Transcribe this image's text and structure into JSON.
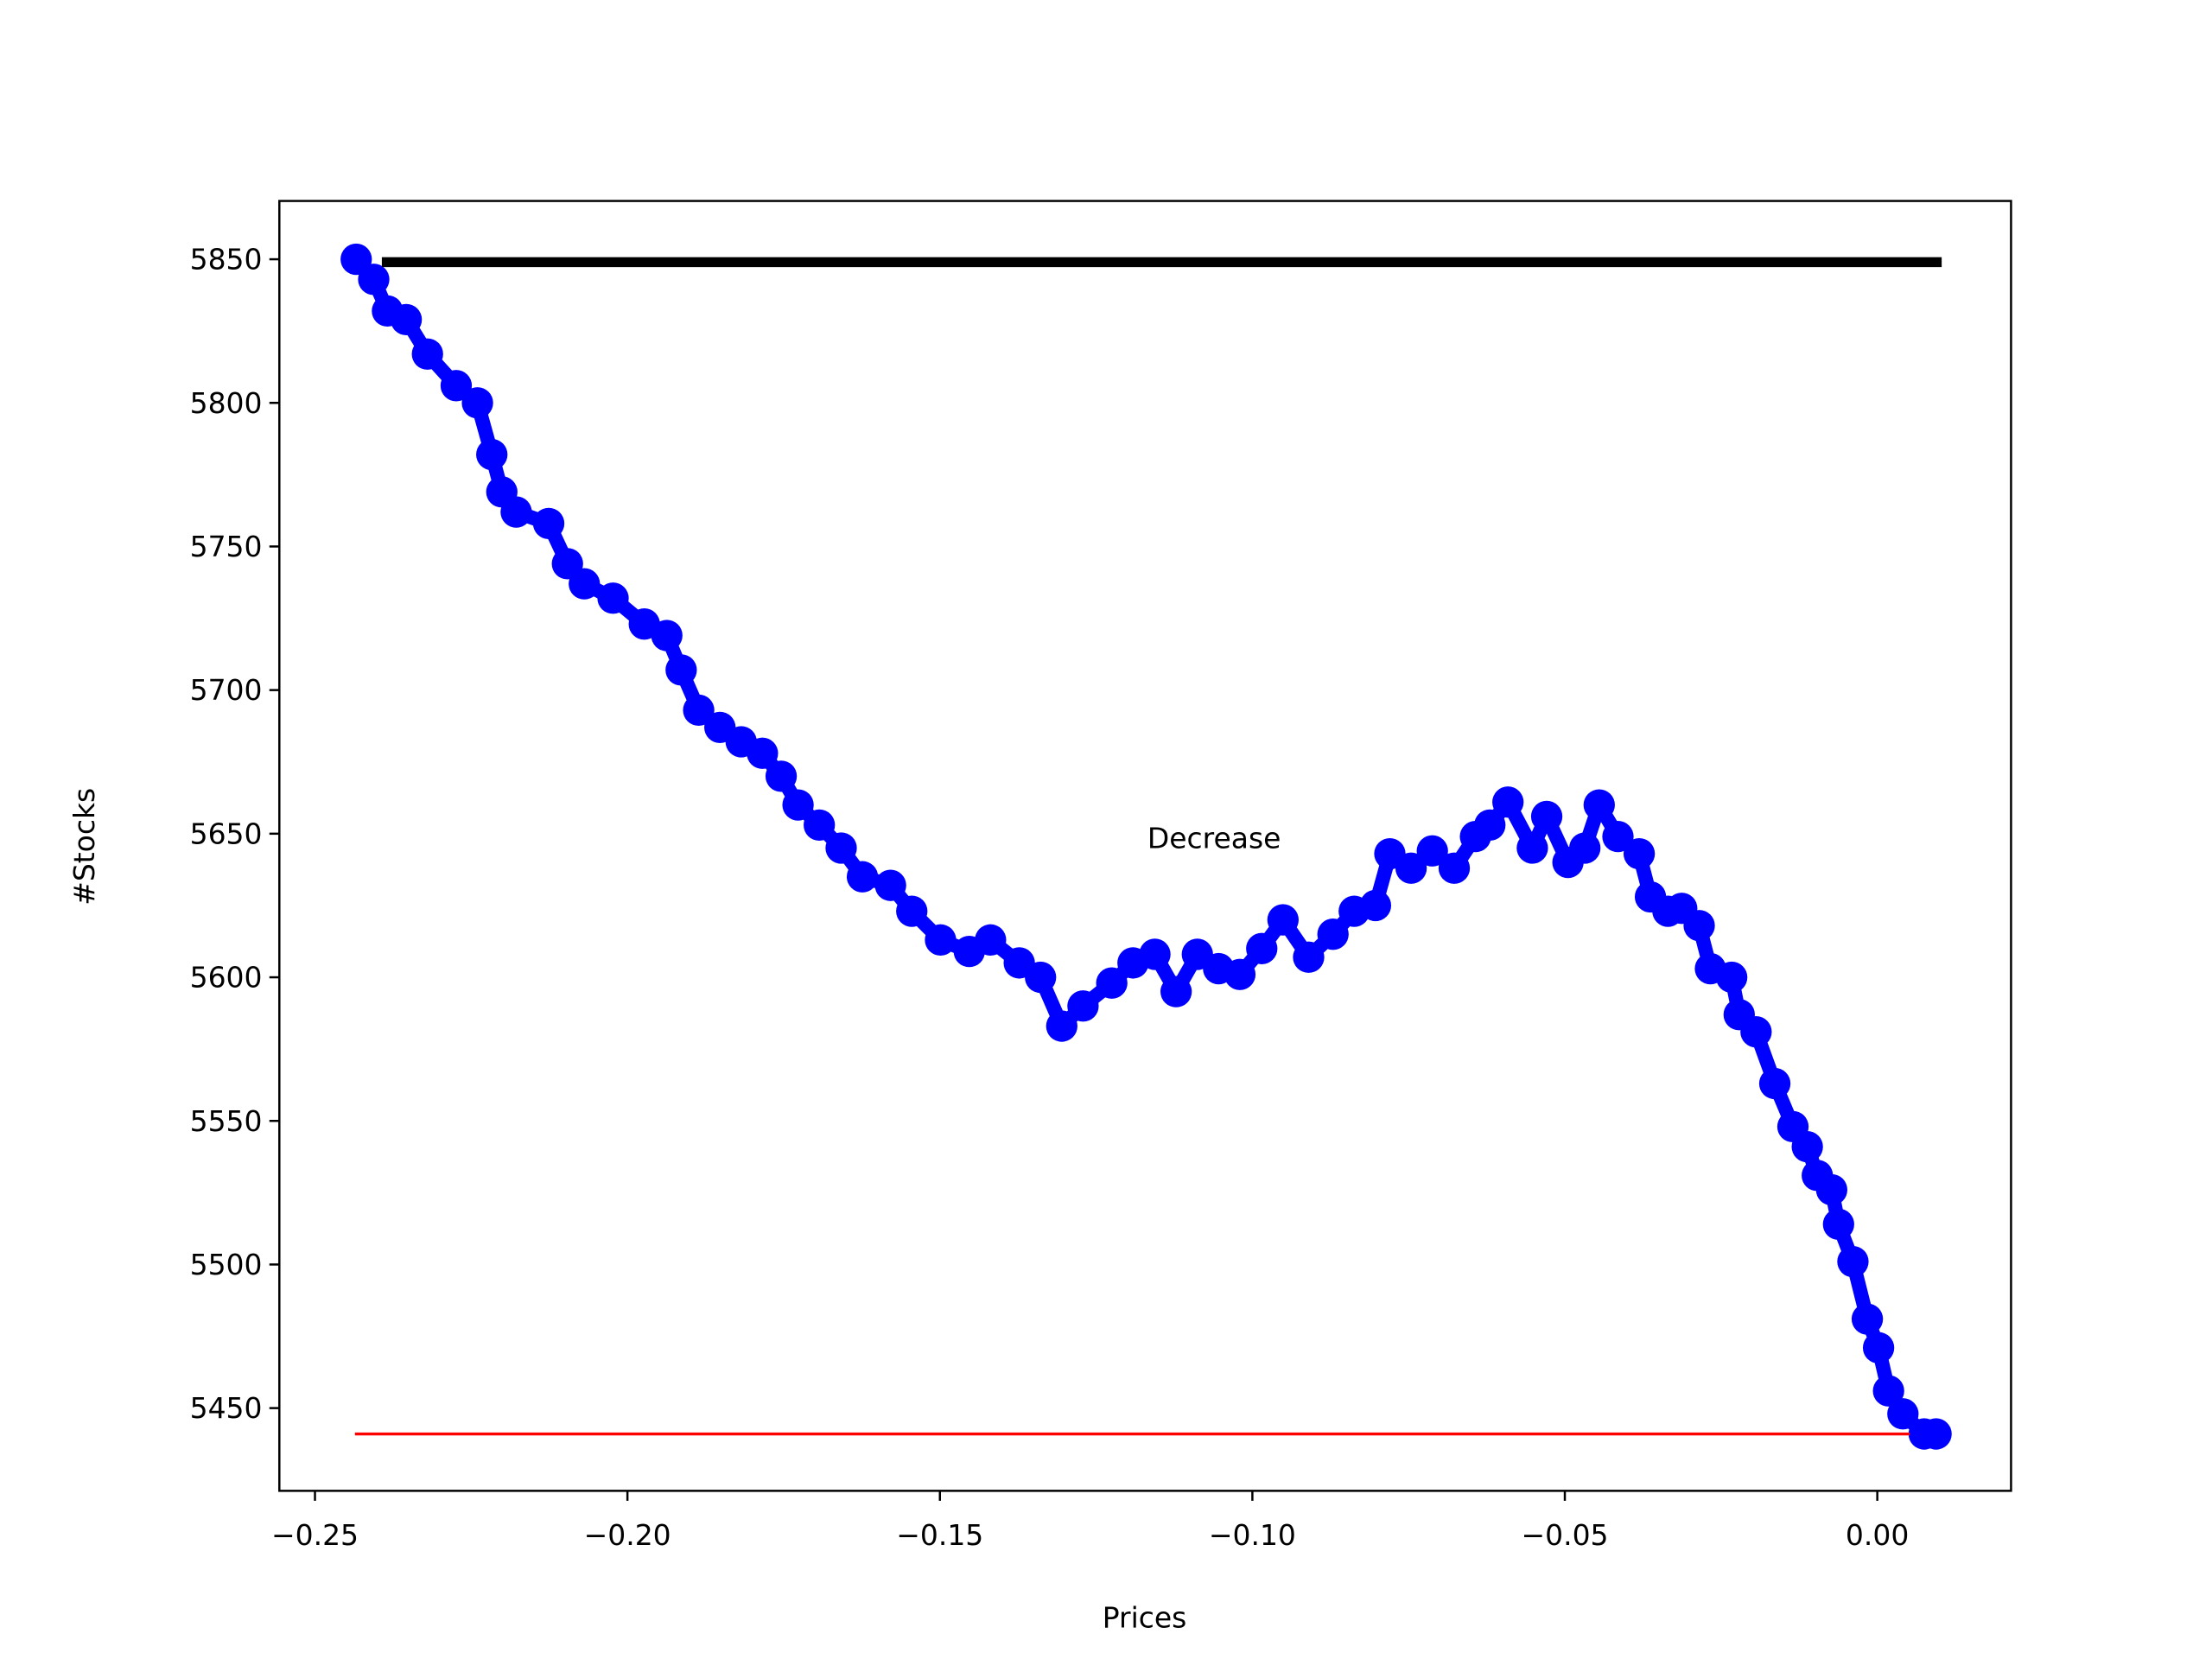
{
  "chart_data": {
    "type": "line",
    "xlabel": "Prices",
    "ylabel": "#Stocks",
    "xlim": [
      -0.2557,
      0.0214
    ],
    "ylim": [
      5421.2,
      5870.3
    ],
    "xticks": [
      {
        "value": -0.25,
        "label": "−0.25"
      },
      {
        "value": -0.2,
        "label": "−0.20"
      },
      {
        "value": -0.15,
        "label": "−0.15"
      },
      {
        "value": -0.1,
        "label": "−0.10"
      },
      {
        "value": -0.05,
        "label": "−0.05"
      },
      {
        "value": 0,
        "label": "0.00"
      }
    ],
    "yticks": [
      5450,
      5500,
      5550,
      5600,
      5650,
      5700,
      5750,
      5800,
      5850
    ],
    "annotations": [
      {
        "text": "Decrease",
        "x": -0.1168,
        "y": 5645
      }
    ],
    "series": [
      {
        "color": "#0000ff",
        "marker": true,
        "linewidth": 10,
        "x": [
          -0.2434,
          -0.2406,
          -0.2384,
          -0.2354,
          -0.232,
          -0.2274,
          -0.224,
          -0.2217,
          -0.2201,
          -0.2178,
          -0.2126,
          -0.2096,
          -0.2069,
          -0.2023,
          -0.1973,
          -0.1937,
          -0.1914,
          -0.1886,
          -0.1852,
          -0.1818,
          -0.1784,
          -0.1754,
          -0.1727,
          -0.1693,
          -0.1658,
          -0.1624,
          -0.1579,
          -0.1545,
          -0.1499,
          -0.1453,
          -0.1419,
          -0.1373,
          -0.1339,
          -0.1305,
          -0.1271,
          -0.1225,
          -0.1191,
          -0.1156,
          -0.1122,
          -0.1088,
          -0.1054,
          -0.102,
          -0.0985,
          -0.0951,
          -0.091,
          -0.0871,
          -0.0837,
          -0.0803,
          -0.078,
          -0.0746,
          -0.0712,
          -0.0677,
          -0.0643,
          -0.062,
          -0.0591,
          -0.0552,
          -0.0529,
          -0.0495,
          -0.0468,
          -0.0445,
          -0.0415,
          -0.0381,
          -0.0363,
          -0.0335,
          -0.0313,
          -0.0285,
          -0.0267,
          -0.0233,
          -0.0221,
          -0.0194,
          -0.0164,
          -0.0135,
          -0.0112,
          -0.0096,
          -0.0073,
          -0.0062,
          -0.0039,
          -0.0016,
          0.0002,
          0.0018,
          0.0041,
          0.0075,
          0.0094
        ],
        "values": [
          5850,
          5843,
          5832,
          5829,
          5817,
          5806,
          5800,
          5782,
          5769,
          5762,
          5758,
          5744,
          5737,
          5732,
          5723,
          5719,
          5707,
          5693,
          5687,
          5682,
          5678,
          5670,
          5660,
          5653,
          5645,
          5635,
          5632,
          5623,
          5613,
          5609,
          5613,
          5605,
          5600,
          5583,
          5590,
          5598,
          5605,
          5608,
          5595,
          5608,
          5603,
          5601,
          5610,
          5620,
          5607,
          5615,
          5623,
          5625,
          5643,
          5638,
          5644,
          5638,
          5649,
          5653,
          5661,
          5645,
          5656,
          5640,
          5645,
          5660,
          5649,
          5643,
          5628,
          5623,
          5624,
          5618,
          5603,
          5600,
          5587,
          5581,
          5563,
          5548,
          5541,
          5531,
          5526,
          5514,
          5501,
          5481,
          5471,
          5456,
          5448,
          5441,
          5441
        ]
      },
      {
        "color": "#000000",
        "marker": false,
        "linewidth": 7,
        "x": [
          -0.2393,
          0.0103
        ],
        "values": [
          5849,
          5849
        ]
      },
      {
        "color": "#ff0000",
        "marker": false,
        "linewidth": 2,
        "x": [
          -0.2436,
          0.0052
        ],
        "values": [
          5441,
          5441
        ]
      }
    ]
  }
}
